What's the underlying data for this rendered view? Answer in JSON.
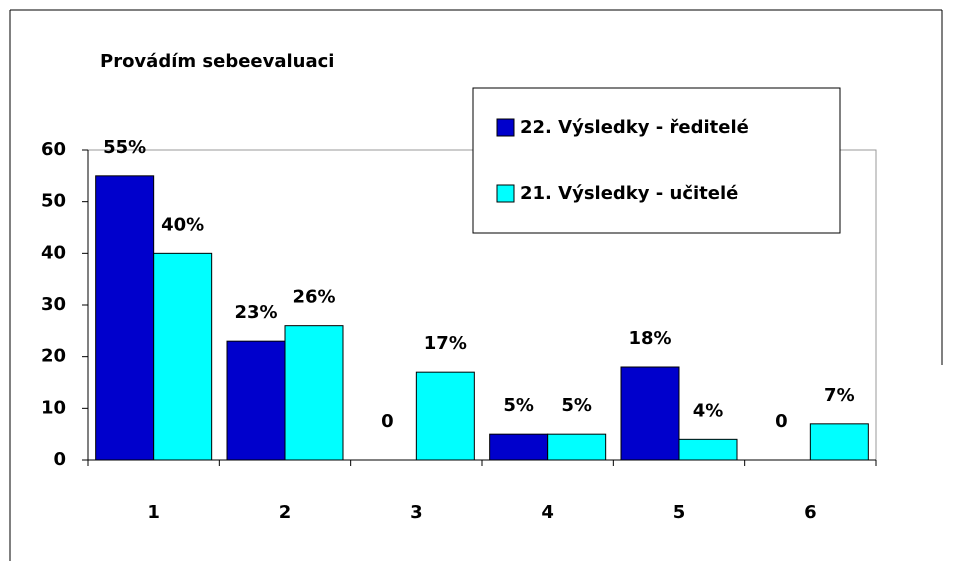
{
  "chart_data": {
    "type": "bar",
    "title": "Provádím sebeevaluaci",
    "categories": [
      "1",
      "2",
      "3",
      "4",
      "5",
      "6"
    ],
    "series": [
      {
        "name": "22. Výsledky - ředitelé",
        "color": "#0000cc",
        "values": [
          55,
          23,
          0,
          5,
          18,
          0
        ],
        "value_labels": [
          "55%",
          "23%",
          "0",
          "5%",
          "18%",
          "0"
        ]
      },
      {
        "name": "21. Výsledky - učitelé",
        "color": "#00ffff",
        "values": [
          40,
          26,
          17,
          5,
          4,
          7
        ],
        "value_labels": [
          "40%",
          "26%",
          "17%",
          "5%",
          "4%",
          "7%"
        ]
      }
    ],
    "ylim": [
      0,
      60
    ],
    "yticks": [
      0,
      10,
      20,
      30,
      40,
      50,
      60
    ],
    "grid": false,
    "legend": "upper right"
  }
}
